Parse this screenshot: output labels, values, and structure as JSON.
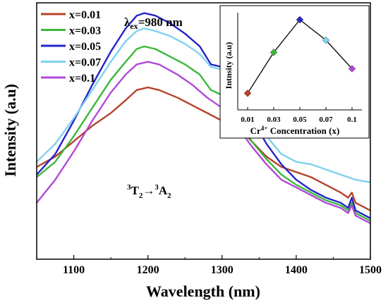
{
  "chart_data": [
    {
      "type": "line",
      "xlabel": "Wavelength (nm)",
      "ylabel": "Intensity (a.u)",
      "xlim": [
        1050,
        1500
      ],
      "x_ticks": [
        "1100",
        "1200",
        "1300",
        "1400",
        "1500"
      ],
      "y_ticks_labeled": false,
      "legend_position": "top-left",
      "excitation_label": {
        "prefix": "λ",
        "sub": "ex",
        "suffix": "=980 nm"
      },
      "transition_label": {
        "parts": [
          "3",
          "T",
          "2",
          "→",
          "3",
          "A",
          "2"
        ]
      },
      "series": [
        {
          "name": "x=0.01",
          "color": "#b5432b",
          "points": [
            [
              1050,
              0.36
            ],
            [
              1075,
              0.4
            ],
            [
              1100,
              0.46
            ],
            [
              1125,
              0.52
            ],
            [
              1150,
              0.57
            ],
            [
              1170,
              0.62
            ],
            [
              1185,
              0.66
            ],
            [
              1200,
              0.67
            ],
            [
              1215,
              0.66
            ],
            [
              1240,
              0.63
            ],
            [
              1260,
              0.6
            ],
            [
              1280,
              0.57
            ],
            [
              1300,
              0.54
            ],
            [
              1320,
              0.52
            ],
            [
              1340,
              0.46
            ],
            [
              1360,
              0.4
            ],
            [
              1380,
              0.36
            ],
            [
              1400,
              0.34
            ],
            [
              1420,
              0.32
            ],
            [
              1440,
              0.29
            ],
            [
              1460,
              0.26
            ],
            [
              1470,
              0.24
            ],
            [
              1475,
              0.26
            ],
            [
              1480,
              0.22
            ],
            [
              1500,
              0.19
            ]
          ]
        },
        {
          "name": "x=0.03",
          "color": "#3cb83c",
          "points": [
            [
              1050,
              0.32
            ],
            [
              1075,
              0.38
            ],
            [
              1100,
              0.48
            ],
            [
              1125,
              0.59
            ],
            [
              1150,
              0.7
            ],
            [
              1170,
              0.77
            ],
            [
              1185,
              0.82
            ],
            [
              1195,
              0.83
            ],
            [
              1210,
              0.82
            ],
            [
              1230,
              0.79
            ],
            [
              1250,
              0.76
            ],
            [
              1270,
              0.72
            ],
            [
              1285,
              0.66
            ],
            [
              1300,
              0.64
            ],
            [
              1320,
              0.56
            ],
            [
              1340,
              0.46
            ],
            [
              1360,
              0.39
            ],
            [
              1380,
              0.33
            ],
            [
              1400,
              0.29
            ],
            [
              1420,
              0.26
            ],
            [
              1440,
              0.23
            ],
            [
              1460,
              0.21
            ],
            [
              1470,
              0.19
            ],
            [
              1475,
              0.22
            ],
            [
              1480,
              0.18
            ],
            [
              1500,
              0.15
            ]
          ]
        },
        {
          "name": "x=0.05",
          "color": "#2424c8",
          "points": [
            [
              1050,
              0.33
            ],
            [
              1075,
              0.41
            ],
            [
              1100,
              0.54
            ],
            [
              1125,
              0.68
            ],
            [
              1150,
              0.81
            ],
            [
              1170,
              0.9
            ],
            [
              1185,
              0.95
            ],
            [
              1195,
              0.96
            ],
            [
              1210,
              0.95
            ],
            [
              1230,
              0.92
            ],
            [
              1250,
              0.88
            ],
            [
              1270,
              0.83
            ],
            [
              1285,
              0.76
            ],
            [
              1300,
              0.75
            ],
            [
              1320,
              0.67
            ],
            [
              1340,
              0.55
            ],
            [
              1360,
              0.45
            ],
            [
              1380,
              0.37
            ],
            [
              1400,
              0.31
            ],
            [
              1420,
              0.27
            ],
            [
              1440,
              0.24
            ],
            [
              1460,
              0.22
            ],
            [
              1470,
              0.2
            ],
            [
              1475,
              0.24
            ],
            [
              1480,
              0.19
            ],
            [
              1500,
              0.16
            ]
          ]
        },
        {
          "name": "x=0.07",
          "color": "#7fd1f0",
          "points": [
            [
              1050,
              0.38
            ],
            [
              1075,
              0.45
            ],
            [
              1100,
              0.55
            ],
            [
              1125,
              0.66
            ],
            [
              1150,
              0.77
            ],
            [
              1170,
              0.85
            ],
            [
              1185,
              0.89
            ],
            [
              1195,
              0.9
            ],
            [
              1210,
              0.89
            ],
            [
              1230,
              0.87
            ],
            [
              1250,
              0.84
            ],
            [
              1270,
              0.8
            ],
            [
              1285,
              0.75
            ],
            [
              1300,
              0.74
            ],
            [
              1320,
              0.66
            ],
            [
              1340,
              0.56
            ],
            [
              1360,
              0.48
            ],
            [
              1380,
              0.41
            ],
            [
              1400,
              0.38
            ],
            [
              1420,
              0.37
            ],
            [
              1440,
              0.35
            ],
            [
              1460,
              0.33
            ],
            [
              1470,
              0.32
            ],
            [
              1480,
              0.31
            ],
            [
              1500,
              0.3
            ]
          ]
        },
        {
          "name": "x=0.1",
          "color": "#b04ad6",
          "points": [
            [
              1050,
              0.22
            ],
            [
              1075,
              0.31
            ],
            [
              1100,
              0.42
            ],
            [
              1125,
              0.54
            ],
            [
              1150,
              0.65
            ],
            [
              1170,
              0.72
            ],
            [
              1185,
              0.76
            ],
            [
              1200,
              0.77
            ],
            [
              1215,
              0.76
            ],
            [
              1240,
              0.72
            ],
            [
              1260,
              0.68
            ],
            [
              1280,
              0.63
            ],
            [
              1300,
              0.59
            ],
            [
              1320,
              0.52
            ],
            [
              1340,
              0.44
            ],
            [
              1360,
              0.37
            ],
            [
              1380,
              0.31
            ],
            [
              1400,
              0.28
            ],
            [
              1420,
              0.25
            ],
            [
              1440,
              0.22
            ],
            [
              1460,
              0.2
            ],
            [
              1470,
              0.18
            ],
            [
              1475,
              0.21
            ],
            [
              1480,
              0.17
            ],
            [
              1500,
              0.14
            ]
          ]
        }
      ]
    },
    {
      "type": "line",
      "title": "",
      "xlabel_prefix": "Cr",
      "xlabel_sup": "4+",
      "xlabel_suffix": " Concentration (x)",
      "ylabel": "Intnsity (a.u)",
      "categories": [
        "0.01",
        "0.03",
        "0.05",
        "0.07",
        "0.1"
      ],
      "values": [
        0.1,
        0.6,
        1.0,
        0.75,
        0.4
      ],
      "marker": "diamond",
      "marker_colors": [
        "#b5432b",
        "#3cb83c",
        "#2424c8",
        "#7fd1f0",
        "#b04ad6"
      ],
      "line_color": "#000000",
      "legend_position": "none"
    }
  ]
}
